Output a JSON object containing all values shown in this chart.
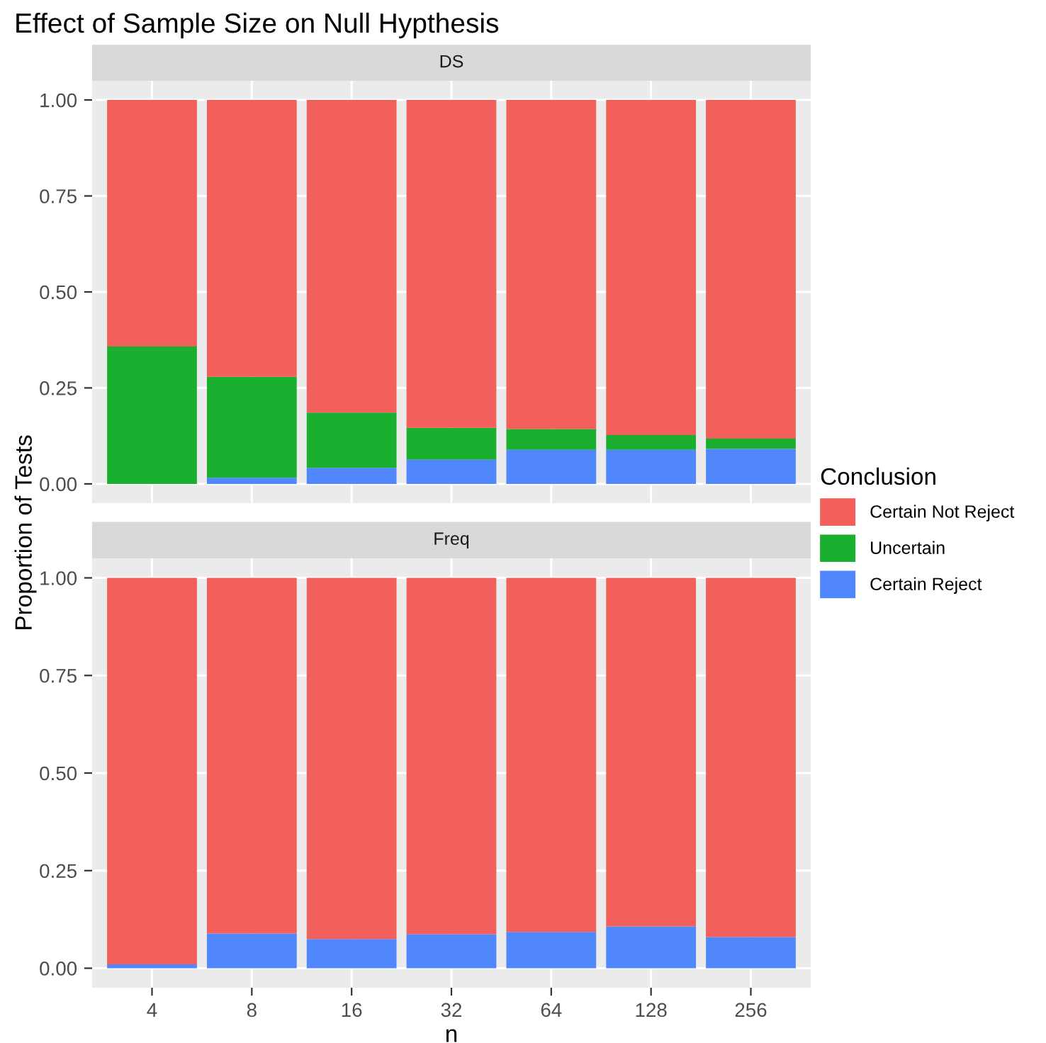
{
  "chart_data": [
    {
      "type": "bar",
      "title": "Effect of Sample Size on Null Hypthesis",
      "subtitle": "DS",
      "ylabel": "Proportion of Tests",
      "legend_title": "Conclusion",
      "legend": "right",
      "stacked": true,
      "grid": true,
      "tick_labels": "y",
      "categories": [
        "4",
        "8",
        "16",
        "32",
        "64",
        "128",
        "256"
      ],
      "ylim": [
        -0.05,
        1.05
      ],
      "yticks": [
        {
          "value": 0,
          "label": "0.00"
        },
        {
          "value": 0.25,
          "label": "0.25"
        },
        {
          "value": 0.5,
          "label": "0.50"
        },
        {
          "value": 0.75,
          "label": "0.75"
        },
        {
          "value": 1,
          "label": "1.00"
        }
      ],
      "series": [
        {
          "name": "Certain Reject",
          "color": "#5087fd",
          "values": [
            0,
            0.016,
            0.042,
            0.063,
            0.089,
            0.089,
            0.091
          ]
        },
        {
          "name": "Uncertain",
          "color": "#1aaf2e",
          "values": [
            0.358,
            0.263,
            0.144,
            0.083,
            0.054,
            0.038,
            0.027
          ]
        },
        {
          "name": "Certain Not Reject",
          "color": "#f35f5a",
          "values": [
            0.642,
            0.721,
            0.814,
            0.854,
            0.857,
            0.873,
            0.882
          ]
        }
      ]
    },
    {
      "type": "bar",
      "subtitle": "Freq",
      "xlabel": "n",
      "stacked": true,
      "grid": true,
      "categories": [
        "4",
        "8",
        "16",
        "32",
        "64",
        "128",
        "256"
      ],
      "ylim": [
        -0.05,
        1.05
      ],
      "yticks": [
        {
          "value": 0,
          "label": "0.00"
        },
        {
          "value": 0.25,
          "label": "0.25"
        },
        {
          "value": 0.5,
          "label": "0.50"
        },
        {
          "value": 0.75,
          "label": "0.75"
        },
        {
          "value": 1,
          "label": "1.00"
        }
      ],
      "series": [
        {
          "color": "#5087fd",
          "values": [
            0.01,
            0.089,
            0.075,
            0.087,
            0.093,
            0.107,
            0.08
          ]
        },
        {
          "color": "#1aaf2e",
          "values": [
            0,
            0,
            0,
            0,
            0,
            0,
            0
          ]
        },
        {
          "color": "#f35f5a",
          "values": [
            0.99,
            0.911,
            0.925,
            0.913,
            0.907,
            0.893,
            0.92
          ]
        }
      ]
    }
  ]
}
